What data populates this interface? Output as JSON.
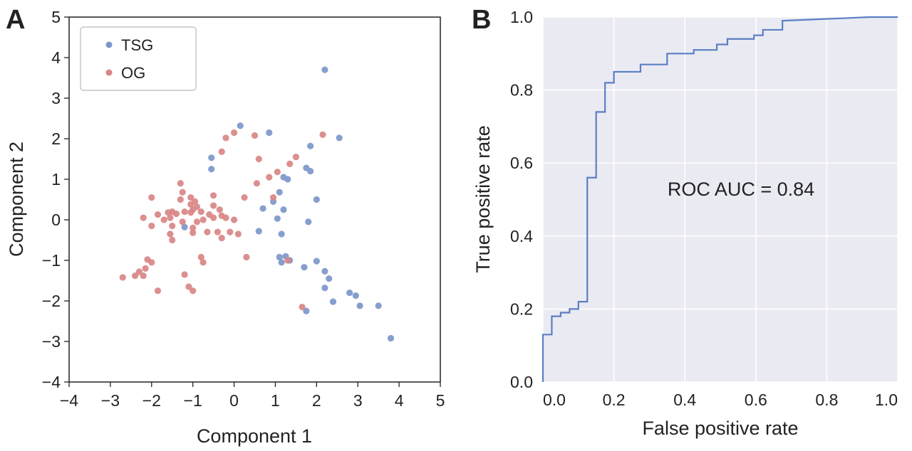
{
  "panels": [
    {
      "letter": "A"
    },
    {
      "letter": "B"
    }
  ],
  "chart_data": [
    {
      "type": "scatter",
      "xlabel": "Component 1",
      "ylabel": "Component 2",
      "xlim": [
        -4,
        5
      ],
      "ylim": [
        -4,
        5
      ],
      "xticks": [
        "−4",
        "−3",
        "−2",
        "−1",
        "0",
        "1",
        "2",
        "3",
        "4",
        "5"
      ],
      "yticks": [
        "−4",
        "−3",
        "−2",
        "−1",
        "0",
        "1",
        "2",
        "3",
        "4",
        "5"
      ],
      "grid": false,
      "legend": "top-left",
      "series": [
        {
          "name": "TSG",
          "color": "#7d97c9",
          "points": [
            [
              2.2,
              3.7
            ],
            [
              2.55,
              2.02
            ],
            [
              0.15,
              2.32
            ],
            [
              0.85,
              2.15
            ],
            [
              1.85,
              1.82
            ],
            [
              -0.55,
              1.53
            ],
            [
              -0.55,
              1.25
            ],
            [
              1.75,
              1.28
            ],
            [
              1.85,
              1.2
            ],
            [
              1.2,
              1.05
            ],
            [
              1.3,
              1.0
            ],
            [
              1.1,
              0.68
            ],
            [
              0.95,
              0.45
            ],
            [
              2.0,
              0.5
            ],
            [
              0.7,
              0.28
            ],
            [
              1.2,
              0.25
            ],
            [
              1.05,
              0.03
            ],
            [
              1.8,
              -0.05
            ],
            [
              -1.2,
              -0.18
            ],
            [
              0.6,
              -0.28
            ],
            [
              1.15,
              -0.35
            ],
            [
              1.1,
              -0.92
            ],
            [
              1.25,
              -0.9
            ],
            [
              1.15,
              -1.05
            ],
            [
              1.35,
              -1.0
            ],
            [
              2.0,
              -1.02
            ],
            [
              1.7,
              -1.17
            ],
            [
              2.2,
              -1.27
            ],
            [
              2.3,
              -1.45
            ],
            [
              2.2,
              -1.68
            ],
            [
              2.8,
              -1.8
            ],
            [
              2.95,
              -1.87
            ],
            [
              2.4,
              -2.02
            ],
            [
              3.05,
              -2.12
            ],
            [
              3.5,
              -2.12
            ],
            [
              1.75,
              -2.25
            ],
            [
              3.8,
              -2.92
            ]
          ]
        },
        {
          "name": "OG",
          "color": "#d98585",
          "points": [
            [
              2.15,
              2.1
            ],
            [
              0.0,
              2.15
            ],
            [
              -0.2,
              2.02
            ],
            [
              0.5,
              2.08
            ],
            [
              -0.3,
              1.68
            ],
            [
              0.6,
              1.5
            ],
            [
              1.5,
              1.55
            ],
            [
              1.35,
              1.38
            ],
            [
              1.05,
              1.18
            ],
            [
              0.85,
              1.05
            ],
            [
              0.55,
              0.9
            ],
            [
              -1.3,
              0.9
            ],
            [
              -1.25,
              0.68
            ],
            [
              -0.5,
              0.6
            ],
            [
              0.25,
              0.55
            ],
            [
              0.95,
              0.55
            ],
            [
              -2.0,
              0.55
            ],
            [
              -1.05,
              0.55
            ],
            [
              -0.95,
              0.45
            ],
            [
              -1.05,
              0.38
            ],
            [
              -0.9,
              0.32
            ],
            [
              -1.3,
              0.5
            ],
            [
              -0.5,
              0.35
            ],
            [
              -1.0,
              0.25
            ],
            [
              -1.2,
              0.2
            ],
            [
              -1.05,
              0.18
            ],
            [
              -0.8,
              0.2
            ],
            [
              -0.35,
              0.25
            ],
            [
              -0.6,
              0.13
            ],
            [
              -0.3,
              0.1
            ],
            [
              -0.2,
              0.05
            ],
            [
              -0.5,
              0.05
            ],
            [
              -1.4,
              0.15
            ],
            [
              -1.5,
              0.2
            ],
            [
              -1.6,
              0.18
            ],
            [
              -1.85,
              0.13
            ],
            [
              -2.2,
              0.05
            ],
            [
              -1.55,
              0.05
            ],
            [
              -1.7,
              0.0
            ],
            [
              -1.25,
              -0.05
            ],
            [
              -0.9,
              -0.05
            ],
            [
              -0.75,
              0.0
            ],
            [
              0.0,
              0.0
            ],
            [
              -1.0,
              -0.2
            ],
            [
              -0.65,
              -0.3
            ],
            [
              -2.0,
              -0.15
            ],
            [
              -1.5,
              -0.15
            ],
            [
              -0.4,
              -0.3
            ],
            [
              -0.1,
              -0.3
            ],
            [
              0.1,
              -0.35
            ],
            [
              -1.55,
              -0.35
            ],
            [
              -1.5,
              -0.5
            ],
            [
              -1.0,
              -0.32
            ],
            [
              -0.3,
              -0.45
            ],
            [
              -0.8,
              -0.92
            ],
            [
              -0.75,
              -1.05
            ],
            [
              -2.1,
              -0.98
            ],
            [
              -2.0,
              -1.05
            ],
            [
              -2.15,
              -1.2
            ],
            [
              -2.3,
              -1.28
            ],
            [
              -2.2,
              -1.38
            ],
            [
              -2.4,
              -1.38
            ],
            [
              -2.7,
              -1.42
            ],
            [
              0.3,
              -0.92
            ],
            [
              1.3,
              -1.0
            ],
            [
              -1.2,
              -1.35
            ],
            [
              -1.1,
              -1.65
            ],
            [
              -1.85,
              -1.75
            ],
            [
              -1.0,
              -1.75
            ],
            [
              1.65,
              -2.15
            ]
          ]
        }
      ]
    },
    {
      "type": "line",
      "xlabel": "False positive rate",
      "ylabel": "True positive rate",
      "xlim": [
        0,
        1
      ],
      "ylim": [
        0,
        1
      ],
      "xticks": [
        "0.0",
        "0.2",
        "0.4",
        "0.6",
        "0.8",
        "1.0"
      ],
      "yticks": [
        "0.0",
        "0.2",
        "0.4",
        "0.6",
        "0.8",
        "1.0"
      ],
      "grid": true,
      "annotation": "ROC AUC = 0.84",
      "series": [
        {
          "color": "#5b7fc4",
          "x": [
            0.0,
            0.0,
            0.025,
            0.025,
            0.05,
            0.05,
            0.075,
            0.075,
            0.1,
            0.1,
            0.125,
            0.125,
            0.15,
            0.15,
            0.175,
            0.175,
            0.2,
            0.2,
            0.275,
            0.275,
            0.35,
            0.35,
            0.425,
            0.425,
            0.49,
            0.49,
            0.52,
            0.52,
            0.595,
            0.595,
            0.62,
            0.62,
            0.675,
            0.675,
            0.75,
            0.85,
            0.92,
            1.0
          ],
          "y": [
            0.0,
            0.13,
            0.13,
            0.18,
            0.18,
            0.19,
            0.19,
            0.2,
            0.2,
            0.22,
            0.22,
            0.56,
            0.56,
            0.74,
            0.74,
            0.82,
            0.82,
            0.85,
            0.85,
            0.87,
            0.87,
            0.9,
            0.9,
            0.91,
            0.91,
            0.925,
            0.925,
            0.94,
            0.94,
            0.95,
            0.95,
            0.965,
            0.965,
            0.99,
            0.993,
            0.997,
            1.0,
            1.0
          ]
        }
      ]
    }
  ]
}
